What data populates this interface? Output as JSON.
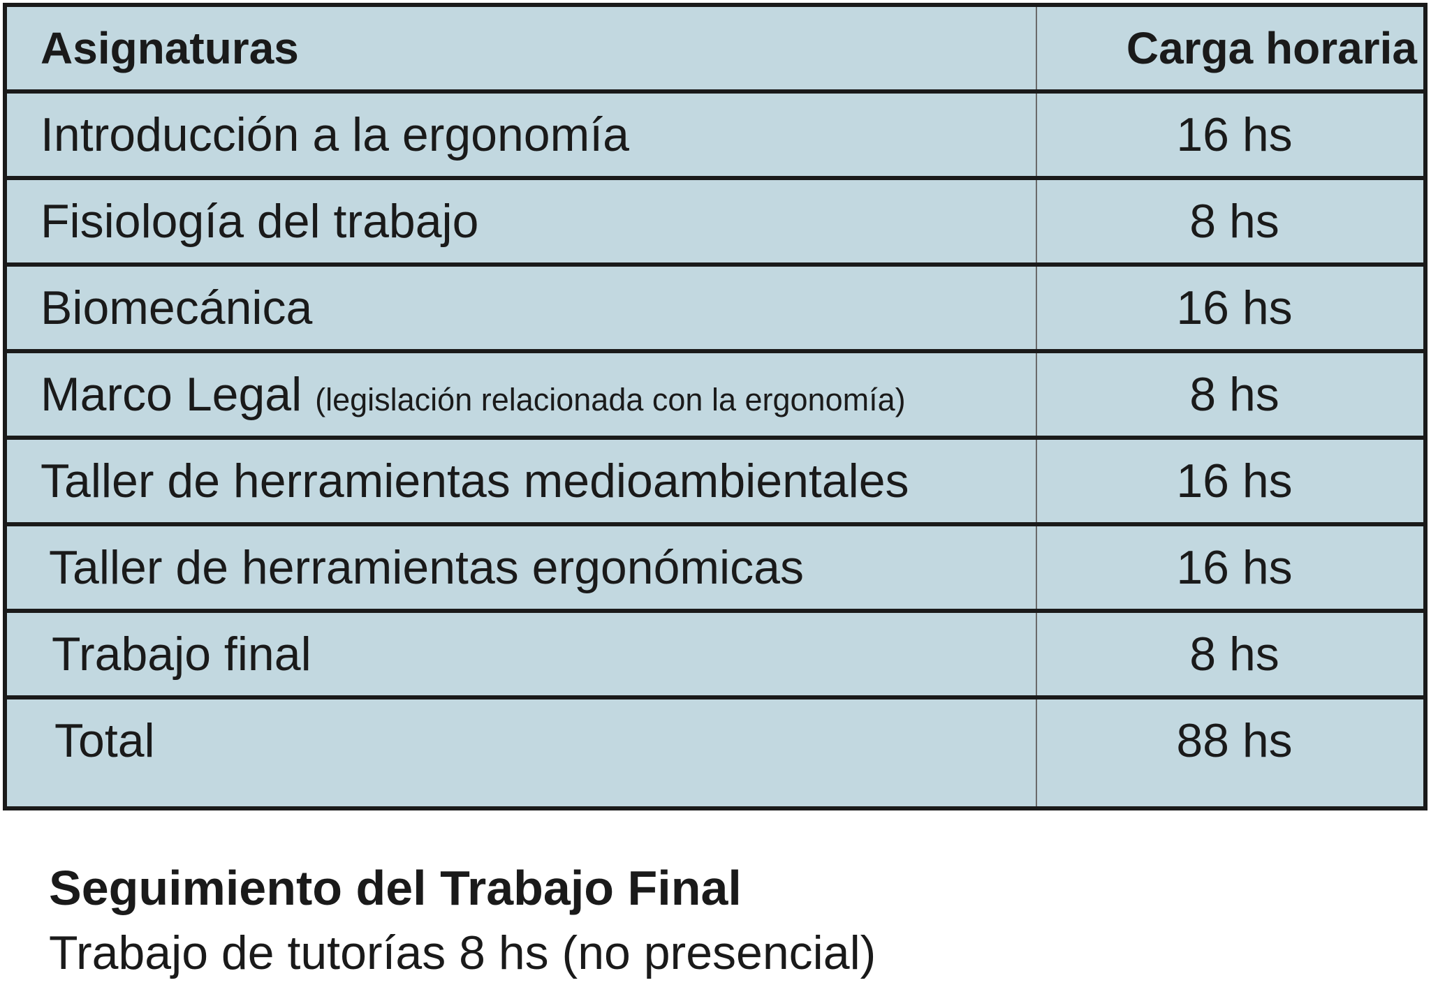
{
  "table": {
    "header": {
      "subject": "Asignaturas",
      "hours": "Carga horaria"
    },
    "rows": [
      {
        "subject": "Introducción a la ergonomía",
        "note": "",
        "hours": "16 hs"
      },
      {
        "subject": "Fisiología del trabajo",
        "note": "",
        "hours": "8 hs"
      },
      {
        "subject": "Biomecánica",
        "note": "",
        "hours": "16 hs"
      },
      {
        "subject": "Marco Legal",
        "note": "(legislación relacionada con la ergonomía)",
        "hours": "8 hs"
      },
      {
        "subject": "Taller de herramientas medioambientales",
        "note": "",
        "hours": "16 hs"
      },
      {
        "subject": "Taller de herramientas ergonómicas",
        "note": "",
        "hours": "16 hs"
      },
      {
        "subject": "Trabajo final",
        "note": "",
        "hours": "8 hs"
      }
    ],
    "total": {
      "subject": "Total",
      "hours": "88 hs"
    }
  },
  "footer": {
    "title": "Seguimiento del Trabajo Final",
    "text": "Trabajo de tutorías 8 hs (no presencial)"
  },
  "colors": {
    "table_background": "#c2d8e0",
    "border": "#1a1a1a",
    "text": "#1a1a1a"
  }
}
